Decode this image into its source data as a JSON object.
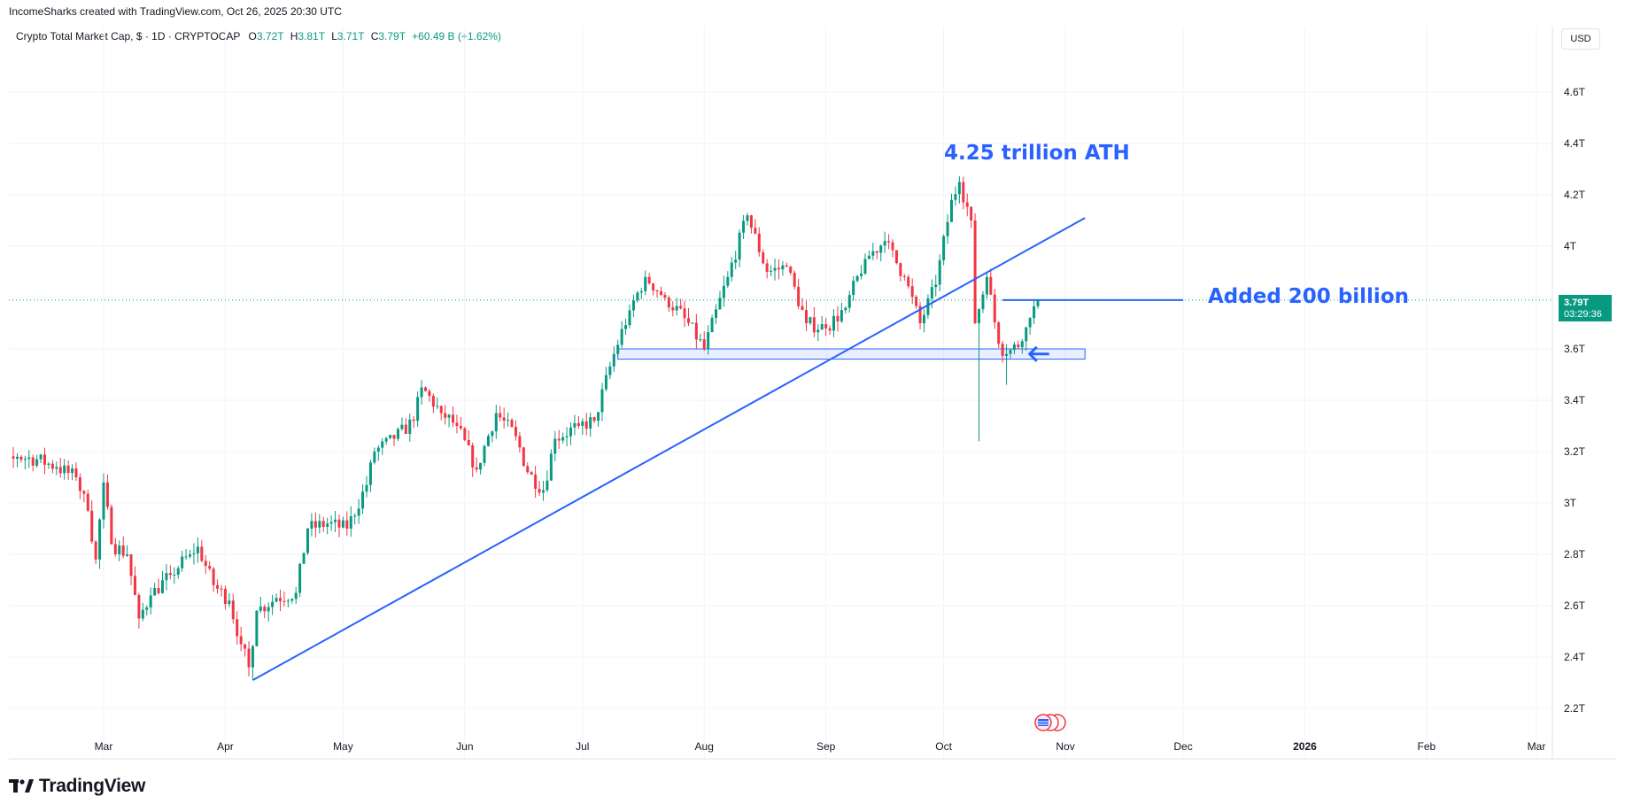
{
  "header": {
    "attribution": "IncomeSharks created with TradingView.com, Oct 26, 2025 20:30 UTC"
  },
  "legend": {
    "symbol": "Crypto Total Market Cap, $ · 1D · CRYPTOCAP",
    "o_label": "O",
    "o_value": "3.72T",
    "h_label": "H",
    "h_value": "3.81T",
    "l_label": "L",
    "l_value": "3.71T",
    "c_label": "C",
    "c_value": "3.79T",
    "change": "+60.49 B (+1.62%)"
  },
  "currency": "USD",
  "price_badge": {
    "price": "3.79T",
    "countdown": "03:29:36"
  },
  "footer": {
    "brand": "TradingView"
  },
  "colors": {
    "up": "#089981",
    "down": "#f23645",
    "annotation": "#2962ff",
    "badge": "#089981"
  },
  "chart_data": {
    "type": "candlestick",
    "y_axis": {
      "min": 2.1,
      "max": 4.8,
      "ticks": [
        2.2,
        2.4,
        2.6,
        2.8,
        3.0,
        3.2,
        3.4,
        3.6,
        3.8,
        4.0,
        4.2,
        4.4,
        4.6
      ],
      "tick_labels": [
        "2.2T",
        "2.4T",
        "2.6T",
        "2.8T",
        "3T",
        "3.2T",
        "3.4T",
        "3.6T",
        "",
        "4T",
        "4.2T",
        "4.4T",
        "4.6T"
      ],
      "unit": "T"
    },
    "x_axis": {
      "start": "2025-01-28",
      "end": "2026-03-10",
      "ticks": [
        {
          "date": "2025-03-01",
          "label": "Mar"
        },
        {
          "date": "2025-04-01",
          "label": "Apr"
        },
        {
          "date": "2025-05-01",
          "label": "May"
        },
        {
          "date": "2025-06-01",
          "label": "Jun"
        },
        {
          "date": "2025-07-01",
          "label": "Jul"
        },
        {
          "date": "2025-08-01",
          "label": "Aug"
        },
        {
          "date": "2025-09-01",
          "label": "Sep"
        },
        {
          "date": "2025-10-01",
          "label": "Oct"
        },
        {
          "date": "2025-11-01",
          "label": "Nov"
        },
        {
          "date": "2025-12-01",
          "label": "Dec"
        },
        {
          "date": "2026-01-01",
          "label": "2026",
          "bold": true
        },
        {
          "date": "2026-02-01",
          "label": "Feb"
        },
        {
          "date": "2026-03-01",
          "label": "Mar"
        }
      ]
    },
    "series": [
      {
        "date": "2025-01-28",
        "close": 3.18
      },
      {
        "date": "2025-02-03",
        "close": 3.12
      },
      {
        "date": "2025-02-08",
        "close": 3.18
      },
      {
        "date": "2025-02-13",
        "close": 3.17
      },
      {
        "date": "2025-02-18",
        "close": 3.14
      },
      {
        "date": "2025-02-23",
        "close": 3.1
      },
      {
        "date": "2025-02-26",
        "close": 2.97
      },
      {
        "date": "2025-02-28",
        "close": 2.78
      },
      {
        "date": "2025-03-02",
        "close": 3.08
      },
      {
        "date": "2025-03-04",
        "close": 2.84
      },
      {
        "date": "2025-03-08",
        "close": 2.8
      },
      {
        "date": "2025-03-11",
        "close": 2.55
      },
      {
        "date": "2025-03-14",
        "close": 2.64
      },
      {
        "date": "2025-03-19",
        "close": 2.72
      },
      {
        "date": "2025-03-24",
        "close": 2.8
      },
      {
        "date": "2025-03-26",
        "close": 2.83
      },
      {
        "date": "2025-03-30",
        "close": 2.68
      },
      {
        "date": "2025-04-03",
        "close": 2.62
      },
      {
        "date": "2025-04-06",
        "close": 2.45
      },
      {
        "date": "2025-04-08",
        "close": 2.36
      },
      {
        "date": "2025-04-10",
        "close": 2.58
      },
      {
        "date": "2025-04-15",
        "close": 2.63
      },
      {
        "date": "2025-04-20",
        "close": 2.65
      },
      {
        "date": "2025-04-23",
        "close": 2.9
      },
      {
        "date": "2025-04-28",
        "close": 2.92
      },
      {
        "date": "2025-05-03",
        "close": 2.9
      },
      {
        "date": "2025-05-08",
        "close": 3.07
      },
      {
        "date": "2025-05-10",
        "close": 3.2
      },
      {
        "date": "2025-05-15",
        "close": 3.25
      },
      {
        "date": "2025-05-20",
        "close": 3.32
      },
      {
        "date": "2025-05-22",
        "close": 3.45
      },
      {
        "date": "2025-05-27",
        "close": 3.35
      },
      {
        "date": "2025-05-31",
        "close": 3.3
      },
      {
        "date": "2025-06-05",
        "close": 3.13
      },
      {
        "date": "2025-06-10",
        "close": 3.35
      },
      {
        "date": "2025-06-15",
        "close": 3.26
      },
      {
        "date": "2025-06-18",
        "close": 3.12
      },
      {
        "date": "2025-06-22",
        "close": 3.05
      },
      {
        "date": "2025-06-25",
        "close": 3.25
      },
      {
        "date": "2025-07-01",
        "close": 3.3
      },
      {
        "date": "2025-07-05",
        "close": 3.32
      },
      {
        "date": "2025-07-10",
        "close": 3.58
      },
      {
        "date": "2025-07-14",
        "close": 3.75
      },
      {
        "date": "2025-07-18",
        "close": 3.88
      },
      {
        "date": "2025-07-23",
        "close": 3.8
      },
      {
        "date": "2025-07-28",
        "close": 3.72
      },
      {
        "date": "2025-08-02",
        "close": 3.6
      },
      {
        "date": "2025-08-08",
        "close": 3.88
      },
      {
        "date": "2025-08-13",
        "close": 4.12
      },
      {
        "date": "2025-08-18",
        "close": 3.9
      },
      {
        "date": "2025-08-23",
        "close": 3.92
      },
      {
        "date": "2025-08-28",
        "close": 3.7
      },
      {
        "date": "2025-09-02",
        "close": 3.68
      },
      {
        "date": "2025-09-07",
        "close": 3.76
      },
      {
        "date": "2025-09-12",
        "close": 3.95
      },
      {
        "date": "2025-09-17",
        "close": 4.02
      },
      {
        "date": "2025-09-22",
        "close": 3.88
      },
      {
        "date": "2025-09-26",
        "close": 3.7
      },
      {
        "date": "2025-09-30",
        "close": 3.85
      },
      {
        "date": "2025-10-04",
        "close": 4.18
      },
      {
        "date": "2025-10-06",
        "close": 4.25
      },
      {
        "date": "2025-10-09",
        "close": 4.1
      },
      {
        "date": "2025-10-10",
        "close": 3.7
      },
      {
        "date": "2025-10-13",
        "close": 3.88
      },
      {
        "date": "2025-10-16",
        "close": 3.62
      },
      {
        "date": "2025-10-18",
        "close": 3.58
      },
      {
        "date": "2025-10-22",
        "close": 3.63
      },
      {
        "date": "2025-10-24",
        "close": 3.72
      },
      {
        "date": "2025-10-26",
        "close": 3.79
      }
    ],
    "annotations": [
      {
        "text": "4.25 trillion ATH"
      },
      {
        "text": "Added 200 billion"
      }
    ],
    "trendline": {
      "start": {
        "date": "2025-04-08",
        "value": 2.31
      },
      "end": {
        "date": "2025-11-06",
        "value": 4.11
      }
    },
    "support_zone": {
      "start": "2025-07-10",
      "end": "2025-11-06",
      "low": 3.56,
      "high": 3.6
    },
    "level_line": {
      "start": "2025-10-16",
      "end": "2025-12-01",
      "value": 3.79
    },
    "last_price": 3.79
  }
}
